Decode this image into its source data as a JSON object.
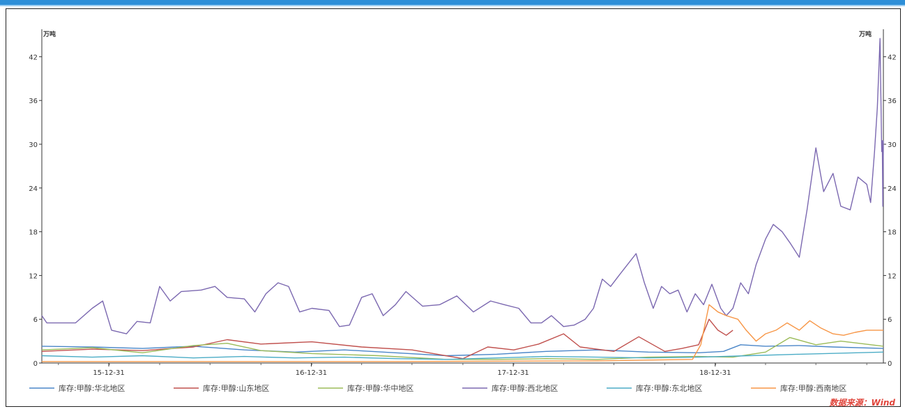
{
  "chart_data": {
    "type": "line",
    "title": "",
    "y_unit_left": "万吨",
    "y_unit_right": "万吨",
    "ylim": [
      0,
      45
    ],
    "yticks": [
      0,
      6,
      12,
      18,
      24,
      30,
      36,
      42
    ],
    "x_start": "2015-09-01",
    "x_end": "2019-10-31",
    "xticks": [
      "15-12-31",
      "16-12-31",
      "17-12-31",
      "18-12-31"
    ],
    "legend_position": "bottom",
    "source": "数据来源：Wind",
    "series": [
      {
        "name": "库存:甲醇:华北地区",
        "color": "#4a86c8",
        "points": [
          [
            "2015-09-01",
            2.3
          ],
          [
            "2015-12-01",
            2.2
          ],
          [
            "2016-03-01",
            2.0
          ],
          [
            "2016-06-01",
            2.3
          ],
          [
            "2016-09-01",
            1.8
          ],
          [
            "2016-12-01",
            1.5
          ],
          [
            "2017-03-01",
            1.8
          ],
          [
            "2017-06-01",
            1.4
          ],
          [
            "2017-09-01",
            1.0
          ],
          [
            "2017-12-01",
            1.2
          ],
          [
            "2018-03-01",
            1.6
          ],
          [
            "2018-06-01",
            1.8
          ],
          [
            "2018-09-01",
            1.5
          ],
          [
            "2018-12-01",
            1.4
          ],
          [
            "2019-01-15",
            1.6
          ],
          [
            "2019-02-15",
            2.5
          ],
          [
            "2019-04-01",
            2.3
          ],
          [
            "2019-06-01",
            2.4
          ],
          [
            "2019-08-01",
            2.2
          ],
          [
            "2019-10-31",
            2.0
          ]
        ]
      },
      {
        "name": "库存:甲醇:山东地区",
        "color": "#c0504d",
        "points": [
          [
            "2015-09-01",
            1.6
          ],
          [
            "2015-12-01",
            1.9
          ],
          [
            "2016-03-01",
            1.7
          ],
          [
            "2016-06-01",
            2.2
          ],
          [
            "2016-08-01",
            3.2
          ],
          [
            "2016-10-01",
            2.6
          ],
          [
            "2017-01-01",
            2.9
          ],
          [
            "2017-04-01",
            2.2
          ],
          [
            "2017-07-01",
            1.8
          ],
          [
            "2017-10-01",
            0.6
          ],
          [
            "2017-11-15",
            2.2
          ],
          [
            "2018-01-01",
            1.8
          ],
          [
            "2018-02-15",
            2.6
          ],
          [
            "2018-04-01",
            4.0
          ],
          [
            "2018-05-01",
            2.2
          ],
          [
            "2018-07-01",
            1.6
          ],
          [
            "2018-08-15",
            3.6
          ],
          [
            "2018-10-01",
            1.6
          ],
          [
            "2018-11-01",
            2.0
          ],
          [
            "2018-12-01",
            2.5
          ],
          [
            "2018-12-20",
            6.0
          ],
          [
            "2019-01-05",
            4.5
          ],
          [
            "2019-01-20",
            3.8
          ],
          [
            "2019-02-01",
            4.5
          ]
        ]
      },
      {
        "name": "库存:甲醇:华中地区",
        "color": "#9bbb59",
        "points": [
          [
            "2015-09-01",
            1.8
          ],
          [
            "2015-12-01",
            2.1
          ],
          [
            "2016-03-01",
            1.4
          ],
          [
            "2016-06-01",
            2.4
          ],
          [
            "2016-08-01",
            2.7
          ],
          [
            "2016-10-01",
            1.7
          ],
          [
            "2017-01-01",
            1.3
          ],
          [
            "2017-05-01",
            1.0
          ],
          [
            "2017-09-01",
            0.5
          ],
          [
            "2017-12-01",
            0.5
          ],
          [
            "2018-03-01",
            0.6
          ],
          [
            "2018-06-01",
            0.5
          ],
          [
            "2018-09-01",
            0.8
          ],
          [
            "2018-12-01",
            0.9
          ],
          [
            "2019-02-01",
            0.8
          ],
          [
            "2019-04-01",
            1.5
          ],
          [
            "2019-05-15",
            3.5
          ],
          [
            "2019-07-01",
            2.5
          ],
          [
            "2019-08-15",
            3.0
          ],
          [
            "2019-10-31",
            2.3
          ]
        ]
      },
      {
        "name": "库存:甲醇:西北地区",
        "color": "#7b68b0",
        "points": [
          [
            "2015-09-01",
            6.5
          ],
          [
            "2015-09-10",
            5.5
          ],
          [
            "2015-11-01",
            5.5
          ],
          [
            "2015-12-01",
            7.5
          ],
          [
            "2015-12-20",
            8.5
          ],
          [
            "2016-01-05",
            4.5
          ],
          [
            "2016-02-01",
            4.0
          ],
          [
            "2016-02-20",
            5.7
          ],
          [
            "2016-03-15",
            5.5
          ],
          [
            "2016-04-01",
            10.5
          ],
          [
            "2016-04-20",
            8.5
          ],
          [
            "2016-05-10",
            9.8
          ],
          [
            "2016-06-15",
            10.0
          ],
          [
            "2016-07-10",
            10.5
          ],
          [
            "2016-08-01",
            9.0
          ],
          [
            "2016-09-01",
            8.8
          ],
          [
            "2016-09-20",
            7.0
          ],
          [
            "2016-10-10",
            9.5
          ],
          [
            "2016-11-01",
            11.0
          ],
          [
            "2016-11-20",
            10.5
          ],
          [
            "2016-12-10",
            7.0
          ],
          [
            "2017-01-01",
            7.5
          ],
          [
            "2017-02-01",
            7.2
          ],
          [
            "2017-02-20",
            5.0
          ],
          [
            "2017-03-10",
            5.2
          ],
          [
            "2017-04-01",
            9.0
          ],
          [
            "2017-04-20",
            9.5
          ],
          [
            "2017-05-10",
            6.5
          ],
          [
            "2017-06-01",
            8.0
          ],
          [
            "2017-06-20",
            9.8
          ],
          [
            "2017-07-20",
            7.8
          ],
          [
            "2017-08-20",
            8.0
          ],
          [
            "2017-09-20",
            9.2
          ],
          [
            "2017-10-20",
            7.0
          ],
          [
            "2017-11-20",
            8.5
          ],
          [
            "2017-12-15",
            8.0
          ],
          [
            "2018-01-10",
            7.5
          ],
          [
            "2018-02-01",
            5.5
          ],
          [
            "2018-02-20",
            5.5
          ],
          [
            "2018-03-10",
            6.5
          ],
          [
            "2018-04-01",
            5.0
          ],
          [
            "2018-04-20",
            5.2
          ],
          [
            "2018-05-10",
            6.0
          ],
          [
            "2018-05-25",
            7.5
          ],
          [
            "2018-06-10",
            11.5
          ],
          [
            "2018-06-25",
            10.5
          ],
          [
            "2018-07-10",
            12.0
          ],
          [
            "2018-08-10",
            15.0
          ],
          [
            "2018-08-25",
            11.0
          ],
          [
            "2018-09-10",
            7.5
          ],
          [
            "2018-09-25",
            10.5
          ],
          [
            "2018-10-10",
            9.5
          ],
          [
            "2018-10-25",
            10.0
          ],
          [
            "2018-11-10",
            7.0
          ],
          [
            "2018-11-25",
            9.5
          ],
          [
            "2018-12-10",
            8.0
          ],
          [
            "2018-12-25",
            10.8
          ],
          [
            "2019-01-10",
            7.5
          ],
          [
            "2019-01-20",
            6.5
          ],
          [
            "2019-02-01",
            7.5
          ],
          [
            "2019-02-15",
            11.0
          ],
          [
            "2019-03-01",
            9.5
          ],
          [
            "2019-03-15",
            13.5
          ],
          [
            "2019-04-01",
            17.0
          ],
          [
            "2019-04-15",
            19.0
          ],
          [
            "2019-05-01",
            18.0
          ],
          [
            "2019-05-15",
            16.5
          ],
          [
            "2019-06-01",
            14.5
          ],
          [
            "2019-06-15",
            21.0
          ],
          [
            "2019-07-01",
            29.5
          ],
          [
            "2019-07-15",
            23.5
          ],
          [
            "2019-08-01",
            26.0
          ],
          [
            "2019-08-15",
            21.5
          ],
          [
            "2019-09-01",
            21.0
          ],
          [
            "2019-09-15",
            25.5
          ],
          [
            "2019-10-01",
            24.5
          ],
          [
            "2019-10-08",
            22.0
          ],
          [
            "2019-10-15",
            29.0
          ],
          [
            "2019-10-20",
            35.0
          ],
          [
            "2019-10-25",
            44.5
          ],
          [
            "2019-10-28",
            29.0
          ],
          [
            "2019-10-29",
            30.5
          ],
          [
            "2019-10-30",
            21.5
          ],
          [
            "2019-10-31",
            30.5
          ]
        ]
      },
      {
        "name": "库存:甲醇:东北地区",
        "color": "#4bacc6",
        "points": [
          [
            "2015-09-01",
            1.0
          ],
          [
            "2015-12-01",
            0.8
          ],
          [
            "2016-03-01",
            1.0
          ],
          [
            "2016-06-01",
            0.7
          ],
          [
            "2016-09-01",
            0.9
          ],
          [
            "2016-12-01",
            0.7
          ],
          [
            "2017-03-01",
            0.8
          ],
          [
            "2017-06-01",
            0.6
          ],
          [
            "2017-09-01",
            0.5
          ],
          [
            "2017-12-01",
            0.7
          ],
          [
            "2018-03-01",
            0.9
          ],
          [
            "2018-06-01",
            0.8
          ],
          [
            "2018-09-01",
            0.7
          ],
          [
            "2018-12-01",
            0.8
          ],
          [
            "2019-03-01",
            1.0
          ],
          [
            "2019-06-01",
            1.2
          ],
          [
            "2019-10-31",
            1.5
          ]
        ]
      },
      {
        "name": "库存:甲醇:西南地区",
        "color": "#f79646",
        "points": [
          [
            "2015-09-01",
            0.2
          ],
          [
            "2016-06-01",
            0.2
          ],
          [
            "2017-06-01",
            0.2
          ],
          [
            "2018-06-01",
            0.3
          ],
          [
            "2018-11-20",
            0.5
          ],
          [
            "2018-12-05",
            2.5
          ],
          [
            "2018-12-20",
            8.0
          ],
          [
            "2019-01-05",
            7.0
          ],
          [
            "2019-01-20",
            6.5
          ],
          [
            "2019-02-10",
            6.0
          ],
          [
            "2019-02-25",
            4.5
          ],
          [
            "2019-03-15",
            3.0
          ],
          [
            "2019-04-01",
            4.0
          ],
          [
            "2019-04-20",
            4.5
          ],
          [
            "2019-05-10",
            5.5
          ],
          [
            "2019-06-01",
            4.5
          ],
          [
            "2019-06-20",
            5.8
          ],
          [
            "2019-07-10",
            4.8
          ],
          [
            "2019-08-01",
            4.0
          ],
          [
            "2019-08-20",
            3.8
          ],
          [
            "2019-09-10",
            4.2
          ],
          [
            "2019-10-01",
            4.5
          ],
          [
            "2019-10-31",
            4.5
          ]
        ]
      }
    ]
  }
}
